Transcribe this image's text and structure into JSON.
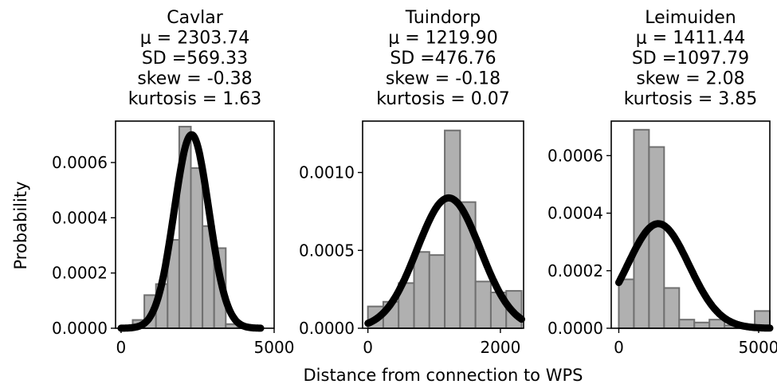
{
  "figure": {
    "xlabel": "Distance from connection to WPS",
    "ylabel": "Probability"
  },
  "chart_data": [
    {
      "type": "bar",
      "title_lines": [
        "Cavlar",
        "μ = 2303.74",
        "SD =569.33",
        "skew = -0.38",
        "kurtosis = 1.63"
      ],
      "xlim": [
        -180,
        5000
      ],
      "ylim": [
        0,
        0.00075
      ],
      "xticks": [
        {
          "v": 0,
          "label": "0"
        },
        {
          "v": 5000,
          "label": "5000"
        }
      ],
      "yticks": [
        {
          "v": 0,
          "label": "0.0000"
        },
        {
          "v": 0.0002,
          "label": "0.0002"
        },
        {
          "v": 0.0004,
          "label": "0.0004"
        },
        {
          "v": 0.0006,
          "label": "0.0006"
        }
      ],
      "bins": [
        {
          "x0": 0,
          "x1": 380,
          "h": 5e-06
        },
        {
          "x0": 380,
          "x1": 760,
          "h": 3e-05
        },
        {
          "x0": 760,
          "x1": 1140,
          "h": 0.00012
        },
        {
          "x0": 1140,
          "x1": 1520,
          "h": 0.00016
        },
        {
          "x0": 1520,
          "x1": 1900,
          "h": 0.00032
        },
        {
          "x0": 1900,
          "x1": 2280,
          "h": 0.00073
        },
        {
          "x0": 2280,
          "x1": 2660,
          "h": 0.00058
        },
        {
          "x0": 2660,
          "x1": 3040,
          "h": 0.00037
        },
        {
          "x0": 3040,
          "x1": 3420,
          "h": 0.00029
        },
        {
          "x0": 3420,
          "x1": 3800,
          "h": 1.5e-05
        },
        {
          "x0": 3800,
          "x1": 4180,
          "h": 1.2e-05
        },
        {
          "x0": 4180,
          "x1": 4560,
          "h": 3e-06
        }
      ],
      "fit": {
        "mu": 2303.74,
        "sd": 569.33,
        "x_range": [
          0,
          4560
        ]
      }
    },
    {
      "type": "bar",
      "title_lines": [
        "Tuindorp",
        "μ = 1219.90",
        "SD =476.76",
        "skew = -0.18",
        "kurtosis = 0.07"
      ],
      "xlim": [
        -80,
        2350
      ],
      "ylim": [
        0,
        0.00133
      ],
      "xticks": [
        {
          "v": 0,
          "label": "0"
        },
        {
          "v": 2000,
          "label": "2000"
        }
      ],
      "yticks": [
        {
          "v": 0,
          "label": "0.0000"
        },
        {
          "v": 0.0005,
          "label": "0.0005"
        },
        {
          "v": 0.001,
          "label": "0.0010"
        }
      ],
      "bins": [
        {
          "x0": 0,
          "x1": 232,
          "h": 0.00014
        },
        {
          "x0": 232,
          "x1": 464,
          "h": 0.00017
        },
        {
          "x0": 464,
          "x1": 696,
          "h": 0.00029
        },
        {
          "x0": 696,
          "x1": 928,
          "h": 0.00049
        },
        {
          "x0": 928,
          "x1": 1160,
          "h": 0.00047
        },
        {
          "x0": 1160,
          "x1": 1392,
          "h": 0.00127
        },
        {
          "x0": 1392,
          "x1": 1624,
          "h": 0.00081
        },
        {
          "x0": 1624,
          "x1": 1856,
          "h": 0.0003
        },
        {
          "x0": 1856,
          "x1": 2088,
          "h": 0.00023
        },
        {
          "x0": 2088,
          "x1": 2320,
          "h": 0.00024
        }
      ],
      "fit": {
        "mu": 1219.9,
        "sd": 476.76,
        "x_range": [
          0,
          2320
        ]
      }
    },
    {
      "type": "bar",
      "title_lines": [
        "Leimuiden",
        "μ = 1411.44",
        "SD =1097.79",
        "skew = 2.08",
        "kurtosis = 3.85"
      ],
      "xlim": [
        -270,
        5400
      ],
      "ylim": [
        0,
        0.00072
      ],
      "xticks": [
        {
          "v": 0,
          "label": "0"
        },
        {
          "v": 5000,
          "label": "5000"
        }
      ],
      "yticks": [
        {
          "v": 0,
          "label": "0.0000"
        },
        {
          "v": 0.0002,
          "label": "0.0002"
        },
        {
          "v": 0.0004,
          "label": "0.0004"
        },
        {
          "v": 0.0006,
          "label": "0.0006"
        }
      ],
      "bins": [
        {
          "x0": 0,
          "x1": 540,
          "h": 0.00017
        },
        {
          "x0": 540,
          "x1": 1080,
          "h": 0.00069
        },
        {
          "x0": 1080,
          "x1": 1620,
          "h": 0.00063
        },
        {
          "x0": 1620,
          "x1": 2160,
          "h": 0.00014
        },
        {
          "x0": 2160,
          "x1": 2700,
          "h": 3e-05
        },
        {
          "x0": 2700,
          "x1": 3240,
          "h": 2e-05
        },
        {
          "x0": 3240,
          "x1": 3780,
          "h": 3e-05
        },
        {
          "x0": 3780,
          "x1": 4320,
          "h": 1e-05
        },
        {
          "x0": 4320,
          "x1": 4860,
          "h": 1e-05
        },
        {
          "x0": 4860,
          "x1": 5400,
          "h": 6e-05
        }
      ],
      "fit": {
        "mu": 1411.44,
        "sd": 1097.79,
        "x_range": [
          0,
          5400
        ]
      }
    }
  ],
  "colors": {
    "bar_fill": "#b0b0b0",
    "bar_edge": "#707070",
    "curve": "#000000",
    "axes": "#000000"
  }
}
